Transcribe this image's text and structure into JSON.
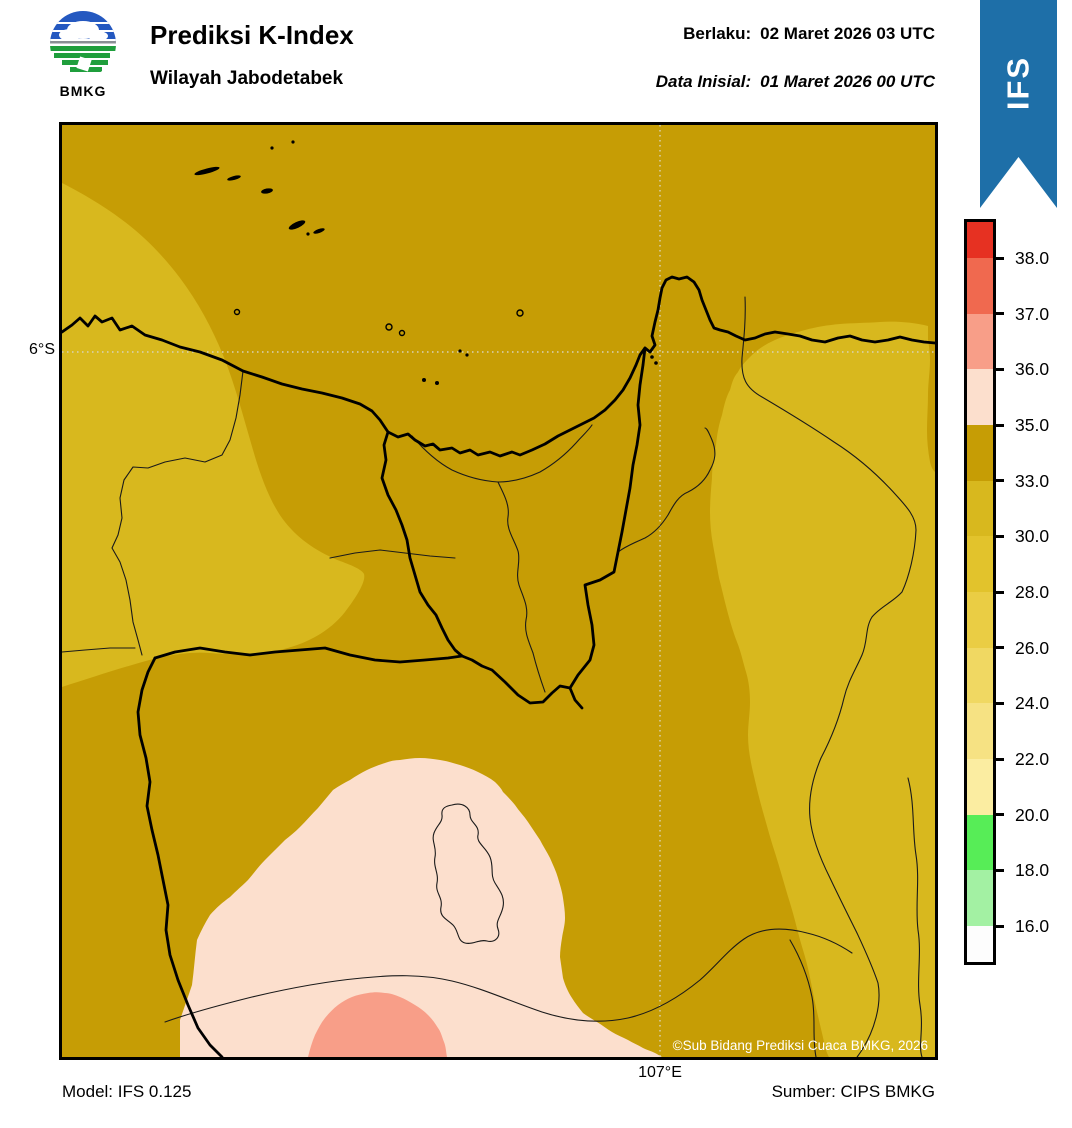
{
  "header": {
    "logo_text": "BMKG",
    "title": "Prediksi K-Index",
    "subtitle": "Wilayah Jabodetabek",
    "berlaku_label": "Berlaku:",
    "berlaku_value": "02 Maret 2026 03 UTC",
    "inisial_label": "Data Inisial:",
    "inisial_value": "01 Maret 2026 00 UTC"
  },
  "ribbon": {
    "label": "IFS",
    "color": "#1e6fa8"
  },
  "colorbar": {
    "tick_labels": [
      "38.0",
      "37.0",
      "36.0",
      "35.0",
      "33.0",
      "30.0",
      "28.0",
      "26.0",
      "24.0",
      "22.0",
      "20.0",
      "18.0",
      "16.0"
    ],
    "segment_colors_top_to_bottom": [
      "#e63122",
      "#f0694f",
      "#f89e88",
      "#fcdfcd",
      "#c69d05",
      "#d8b81e",
      "#e2c32c",
      "#eacd44",
      "#f0d862",
      "#f6e283",
      "#fbeda1",
      "#57ed57",
      "#a3f1a3",
      "#fdfdfd"
    ]
  },
  "map": {
    "lat_label": "6°S",
    "lon_label": "107°E",
    "copyright": "©Sub Bidang Prediksi Cuaca BMKG, 2026",
    "band_colors": {
      "k33_35": "#c69d05",
      "k30_33": "#d8b81e",
      "k35_36": "#fcdfcd",
      "k36_37": "#f89e88"
    },
    "gridline_color": "#d9d2b8"
  },
  "footer": {
    "model": "Model: IFS 0.125",
    "source": "Sumber: CIPS BMKG"
  },
  "chart_data": {
    "type": "heatmap",
    "title": "Prediksi K-Index Wilayah Jabodetabek",
    "legend_title": "K-Index",
    "scale_boundaries": [
      16.0,
      18.0,
      20.0,
      22.0,
      24.0,
      26.0,
      28.0,
      30.0,
      33.0,
      35.0,
      36.0,
      37.0,
      38.0
    ],
    "scale_colors_low_to_high": [
      "#fdfdfd",
      "#a3f1a3",
      "#57ed57",
      "#fbeda1",
      "#f6e283",
      "#f0d862",
      "#eacd44",
      "#e2c32c",
      "#d8b81e",
      "#c69d05",
      "#fcdfcd",
      "#f89e88",
      "#f0694f",
      "#e63122"
    ],
    "gridlines": {
      "latitude": "6°S",
      "longitude": "107°E"
    },
    "regions_depicted": [
      {
        "band": "33-35",
        "note": "dominant area of map"
      },
      {
        "band": "30-33",
        "note": "west/left blob and east/right blob"
      },
      {
        "band": "35-36",
        "note": "large blob at bottom-center"
      },
      {
        "band": "36-37",
        "note": "small blob at bottom edge center"
      }
    ]
  }
}
